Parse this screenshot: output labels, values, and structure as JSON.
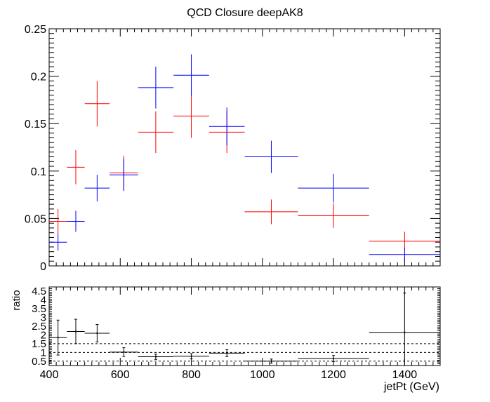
{
  "chart_data": [
    {
      "type": "scatter",
      "title": "QCD Closure deepAK8",
      "xlim": [
        400,
        1500
      ],
      "ylim": [
        0,
        0.25
      ],
      "y_ticks": [
        "0",
        "0.05",
        "0.1",
        "0.15",
        "0.2",
        "0.25"
      ],
      "grid": false,
      "series": [
        {
          "color": "#ff0000",
          "points": [
            {
              "x": 425,
              "xerr": 25,
              "y": 0.047,
              "yerr": 0.013
            },
            {
              "x": 475,
              "xerr": 25,
              "y": 0.104,
              "yerr": 0.018
            },
            {
              "x": 535,
              "xerr": 35,
              "y": 0.171,
              "yerr": 0.024
            },
            {
              "x": 610,
              "xerr": 40,
              "y": 0.098,
              "yerr": 0.018
            },
            {
              "x": 700,
              "xerr": 50,
              "y": 0.141,
              "yerr": 0.022
            },
            {
              "x": 800,
              "xerr": 50,
              "y": 0.158,
              "yerr": 0.023
            },
            {
              "x": 900,
              "xerr": 50,
              "y": 0.141,
              "yerr": 0.022
            },
            {
              "x": 1025,
              "xerr": 75,
              "y": 0.057,
              "yerr": 0.013
            },
            {
              "x": 1200,
              "xerr": 100,
              "y": 0.053,
              "yerr": 0.013
            },
            {
              "x": 1400,
              "xerr": 100,
              "y": 0.026,
              "yerr": 0.01
            }
          ]
        },
        {
          "color": "#0000ff",
          "points": [
            {
              "x": 425,
              "xerr": 25,
              "y": 0.025,
              "yerr": 0.009
            },
            {
              "x": 475,
              "xerr": 25,
              "y": 0.047,
              "yerr": 0.011
            },
            {
              "x": 535,
              "xerr": 35,
              "y": 0.082,
              "yerr": 0.014
            },
            {
              "x": 610,
              "xerr": 40,
              "y": 0.096,
              "yerr": 0.017
            },
            {
              "x": 700,
              "xerr": 50,
              "y": 0.188,
              "yerr": 0.022
            },
            {
              "x": 800,
              "xerr": 50,
              "y": 0.201,
              "yerr": 0.022
            },
            {
              "x": 900,
              "xerr": 50,
              "y": 0.147,
              "yerr": 0.02
            },
            {
              "x": 1025,
              "xerr": 75,
              "y": 0.115,
              "yerr": 0.017
            },
            {
              "x": 1200,
              "xerr": 100,
              "y": 0.082,
              "yerr": 0.015
            },
            {
              "x": 1400,
              "xerr": 100,
              "y": 0.012,
              "yerr": 0.007
            }
          ]
        }
      ]
    },
    {
      "type": "scatter",
      "ylabel": "ratio",
      "xlabel": "jetPt (GeV)",
      "xlim": [
        400,
        1500
      ],
      "ylim": [
        0.25,
        4.75
      ],
      "x_ticks": [
        "400",
        "600",
        "800",
        "1000",
        "1200",
        "1400"
      ],
      "y_ticks": [
        "0.5",
        "1",
        "1.5",
        "2",
        "2.5",
        "3",
        "3.5",
        "4",
        "4.5"
      ],
      "reference_lines": [
        0.5,
        1.0,
        1.5
      ],
      "series": [
        {
          "color": "#000000",
          "points": [
            {
              "x": 425,
              "xerr": 25,
              "y": 1.85,
              "yerr": 1.0
            },
            {
              "x": 475,
              "xerr": 25,
              "y": 2.2,
              "yerr": 0.7
            },
            {
              "x": 535,
              "xerr": 35,
              "y": 2.1,
              "yerr": 0.5
            },
            {
              "x": 610,
              "xerr": 40,
              "y": 1.02,
              "yerr": 0.25
            },
            {
              "x": 700,
              "xerr": 50,
              "y": 0.75,
              "yerr": 0.15
            },
            {
              "x": 800,
              "xerr": 50,
              "y": 0.78,
              "yerr": 0.15
            },
            {
              "x": 900,
              "xerr": 50,
              "y": 0.96,
              "yerr": 0.2
            },
            {
              "x": 1025,
              "xerr": 75,
              "y": 0.5,
              "yerr": 0.12
            },
            {
              "x": 1200,
              "xerr": 100,
              "y": 0.65,
              "yerr": 0.17
            },
            {
              "x": 1400,
              "xerr": 100,
              "y": 2.15,
              "yerr": 2.25
            }
          ]
        }
      ]
    }
  ]
}
